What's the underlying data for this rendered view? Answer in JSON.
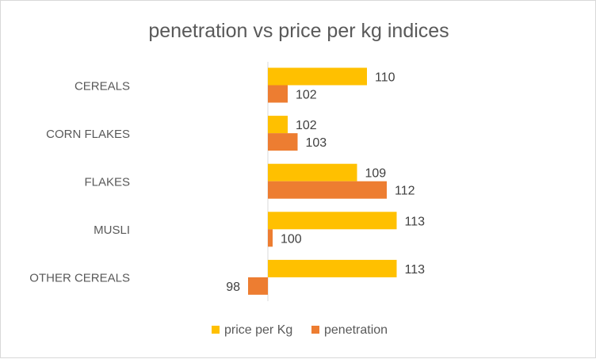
{
  "chart_data": {
    "type": "bar",
    "orientation": "horizontal",
    "title": "penetration vs price per kg indices",
    "categories": [
      "CEREALS",
      "CORN FLAKES",
      "FLAKES",
      "MUSLI",
      "OTHER CEREALS"
    ],
    "baseline": 100,
    "series": [
      {
        "name": "price per Kg",
        "values": [
          110,
          102,
          109,
          113,
          113
        ],
        "color": "#FFC000"
      },
      {
        "name": "penetration",
        "values": [
          102,
          103,
          112,
          100,
          98
        ],
        "color": "#ED7D31"
      }
    ],
    "legend": "bottom",
    "grid": false
  }
}
